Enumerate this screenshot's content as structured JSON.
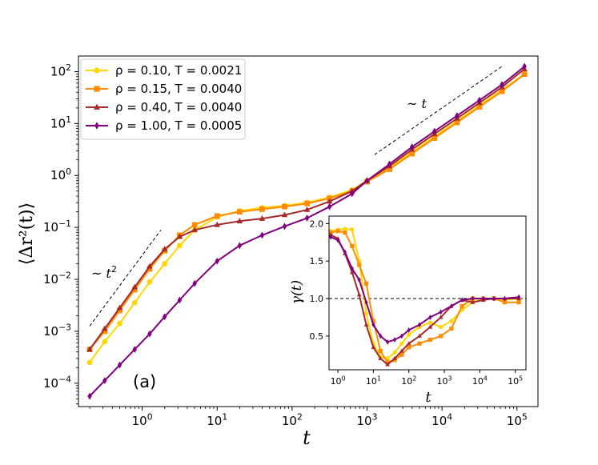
{
  "chart_data": [
    {
      "type": "line",
      "panel_label": "(a)",
      "xlabel": "t",
      "ylabel": "⟨Δr²(t)⟩",
      "xscale": "log",
      "yscale": "log",
      "xlim_log10": [
        -0.85,
        5.28
      ],
      "ylim_log10": [
        -4.45,
        2.3
      ],
      "xticks": [
        {
          "value": 1,
          "base": "10",
          "exp": "0"
        },
        {
          "value": 10,
          "base": "10",
          "exp": "1"
        },
        {
          "value": 100,
          "base": "10",
          "exp": "2"
        },
        {
          "value": 1000,
          "base": "10",
          "exp": "3"
        },
        {
          "value": 10000,
          "base": "10",
          "exp": "4"
        },
        {
          "value": 100000,
          "base": "10",
          "exp": "5"
        }
      ],
      "yticks": [
        {
          "value": 0.0001,
          "base": "10",
          "exp": "−4"
        },
        {
          "value": 0.001,
          "base": "10",
          "exp": "−3"
        },
        {
          "value": 0.01,
          "base": "10",
          "exp": "−2"
        },
        {
          "value": 0.1,
          "base": "10",
          "exp": "−1"
        },
        {
          "value": 1,
          "base": "10",
          "exp": "0"
        },
        {
          "value": 10,
          "base": "10",
          "exp": "1"
        },
        {
          "value": 100,
          "base": "10",
          "exp": "2"
        }
      ],
      "legend_position": "top-left",
      "annotations": [
        {
          "text": "~ t",
          "sup": "2",
          "guide_log10": [
            [
              -0.7,
              -2.9
            ],
            [
              0.25,
              -1.05
            ]
          ]
        },
        {
          "text": "~ t",
          "sup": "",
          "guide_log10": [
            [
              3.1,
              0.4
            ],
            [
              4.8,
              2.1
            ]
          ]
        }
      ],
      "series": [
        {
          "name": "ρ = 0.10, T = 0.0021",
          "color": "#FFD700",
          "marker": "circle",
          "x_log10": [
            -0.7,
            -0.5,
            -0.3,
            -0.1,
            0.1,
            0.3,
            0.5,
            0.7,
            1.0,
            1.3,
            1.6,
            1.9,
            2.2,
            2.5,
            2.8,
            3.0,
            3.3,
            3.6,
            3.9,
            4.2,
            4.5,
            4.8,
            5.1
          ],
          "y_log10": [
            -3.6,
            -3.2,
            -2.85,
            -2.45,
            -2.05,
            -1.7,
            -1.35,
            -1.05,
            -0.8,
            -0.68,
            -0.62,
            -0.58,
            -0.52,
            -0.42,
            -0.28,
            -0.1,
            0.15,
            0.45,
            0.75,
            1.05,
            1.35,
            1.65,
            1.95
          ]
        },
        {
          "name": "ρ = 0.15, T = 0.0040",
          "color": "#FF8C00",
          "marker": "square",
          "x_log10": [
            -0.7,
            -0.5,
            -0.3,
            -0.1,
            0.1,
            0.3,
            0.5,
            0.7,
            1.0,
            1.3,
            1.6,
            1.9,
            2.2,
            2.5,
            2.8,
            3.0,
            3.3,
            3.6,
            3.9,
            4.2,
            4.5,
            4.8,
            5.1
          ],
          "y_log10": [
            -3.35,
            -3.0,
            -2.6,
            -2.2,
            -1.8,
            -1.45,
            -1.15,
            -0.95,
            -0.78,
            -0.7,
            -0.65,
            -0.6,
            -0.54,
            -0.44,
            -0.3,
            -0.12,
            0.12,
            0.42,
            0.72,
            1.02,
            1.32,
            1.62,
            1.95
          ]
        },
        {
          "name": "ρ = 0.40, T = 0.0040",
          "color": "#A52A2A",
          "marker": "triangle",
          "x_log10": [
            -0.7,
            -0.5,
            -0.3,
            -0.1,
            0.1,
            0.3,
            0.5,
            0.7,
            1.0,
            1.3,
            1.6,
            1.9,
            2.2,
            2.5,
            2.8,
            3.0,
            3.3,
            3.6,
            3.9,
            4.2,
            4.5,
            4.8,
            5.1
          ],
          "y_log10": [
            -3.35,
            -2.95,
            -2.55,
            -2.15,
            -1.75,
            -1.42,
            -1.18,
            -1.05,
            -0.95,
            -0.88,
            -0.83,
            -0.76,
            -0.66,
            -0.5,
            -0.3,
            -0.1,
            0.18,
            0.5,
            0.8,
            1.1,
            1.4,
            1.7,
            2.05
          ]
        },
        {
          "name": "ρ = 1.00, T = 0.0005",
          "color": "#800080",
          "marker": "diamond",
          "x_log10": [
            -0.7,
            -0.5,
            -0.3,
            -0.1,
            0.1,
            0.3,
            0.5,
            0.7,
            1.0,
            1.3,
            1.6,
            1.9,
            2.2,
            2.5,
            2.8,
            3.0,
            3.3,
            3.6,
            3.9,
            4.2,
            4.5,
            4.8,
            5.1
          ],
          "y_log10": [
            -4.25,
            -3.95,
            -3.65,
            -3.35,
            -3.05,
            -2.72,
            -2.4,
            -2.08,
            -1.65,
            -1.35,
            -1.15,
            -0.98,
            -0.82,
            -0.6,
            -0.35,
            -0.1,
            0.22,
            0.55,
            0.85,
            1.15,
            1.45,
            1.75,
            2.1
          ]
        }
      ]
    },
    {
      "type": "line",
      "inset": true,
      "xlabel": "t",
      "ylabel": "γ(t)",
      "xscale": "log",
      "yscale": "linear",
      "xlim_log10": [
        -0.25,
        5.3
      ],
      "ylim": [
        0.05,
        2.1
      ],
      "xticks": [
        {
          "value": 1,
          "base": "10",
          "exp": "0"
        },
        {
          "value": 10,
          "base": "10",
          "exp": "1"
        },
        {
          "value": 100,
          "base": "10",
          "exp": "2"
        },
        {
          "value": 1000,
          "base": "10",
          "exp": "3"
        },
        {
          "value": 10000,
          "base": "10",
          "exp": "4"
        },
        {
          "value": 100000,
          "base": "10",
          "exp": "5"
        }
      ],
      "yticks": [
        {
          "value": 0.5,
          "label": "0.5"
        },
        {
          "value": 1.0,
          "label": "1.0"
        },
        {
          "value": 1.5,
          "label": "1.5"
        },
        {
          "value": 2.0,
          "label": "2.0"
        }
      ],
      "reference_line": 1.0,
      "series": [
        {
          "name": "ρ = 0.10, T = 0.0021",
          "color": "#FFD700",
          "marker": "circle",
          "x_log10": [
            -0.2,
            0.0,
            0.2,
            0.4,
            0.6,
            0.8,
            1.0,
            1.2,
            1.4,
            1.6,
            1.8,
            2.0,
            2.3,
            2.6,
            2.9,
            3.2,
            3.5,
            3.8,
            4.1,
            4.4,
            4.7,
            5.1
          ],
          "y_log10": [
            1.9,
            1.92,
            1.93,
            1.92,
            1.5,
            0.8,
            0.4,
            0.22,
            0.2,
            0.28,
            0.4,
            0.52,
            0.62,
            0.68,
            0.62,
            0.7,
            0.85,
            0.95,
            1.0,
            1.0,
            0.98,
            1.0
          ]
        },
        {
          "name": "ρ = 0.15, T = 0.0040",
          "color": "#FF8C00",
          "marker": "square",
          "x_log10": [
            -0.2,
            0.0,
            0.2,
            0.4,
            0.6,
            0.8,
            1.0,
            1.2,
            1.4,
            1.6,
            1.8,
            2.0,
            2.3,
            2.6,
            2.9,
            3.2,
            3.5,
            3.8,
            4.1,
            4.4,
            4.7,
            5.1
          ],
          "y_log10": [
            1.88,
            1.9,
            1.88,
            1.7,
            1.45,
            1.2,
            0.7,
            0.3,
            0.15,
            0.18,
            0.25,
            0.35,
            0.4,
            0.45,
            0.5,
            0.6,
            0.9,
            1.0,
            1.0,
            1.0,
            0.95,
            0.95
          ]
        },
        {
          "name": "ρ = 0.40, T = 0.0040",
          "color": "#A52A2A",
          "marker": "triangle",
          "x_log10": [
            -0.2,
            0.0,
            0.2,
            0.4,
            0.6,
            0.8,
            1.0,
            1.2,
            1.4,
            1.6,
            1.8,
            2.0,
            2.3,
            2.6,
            2.9,
            3.2,
            3.5,
            3.8,
            4.1,
            4.4,
            4.7,
            5.1
          ],
          "y_log10": [
            1.85,
            1.8,
            1.6,
            1.35,
            1.05,
            0.65,
            0.35,
            0.2,
            0.12,
            0.2,
            0.3,
            0.4,
            0.5,
            0.62,
            0.75,
            0.9,
            0.98,
            0.95,
            0.98,
            1.0,
            1.0,
            1.0
          ]
        },
        {
          "name": "ρ = 1.00, T = 0.0005",
          "color": "#800080",
          "marker": "diamond",
          "x_log10": [
            -0.2,
            0.0,
            0.2,
            0.4,
            0.6,
            0.8,
            1.0,
            1.2,
            1.4,
            1.6,
            1.8,
            2.0,
            2.3,
            2.6,
            2.9,
            3.2,
            3.5,
            3.8,
            4.1,
            4.4,
            4.7,
            5.1
          ],
          "y_log10": [
            1.82,
            1.78,
            1.62,
            1.4,
            1.25,
            0.95,
            0.65,
            0.5,
            0.42,
            0.45,
            0.5,
            0.58,
            0.65,
            0.75,
            0.82,
            0.9,
            0.98,
            1.0,
            1.0,
            1.0,
            1.0,
            1.02
          ]
        }
      ]
    }
  ]
}
